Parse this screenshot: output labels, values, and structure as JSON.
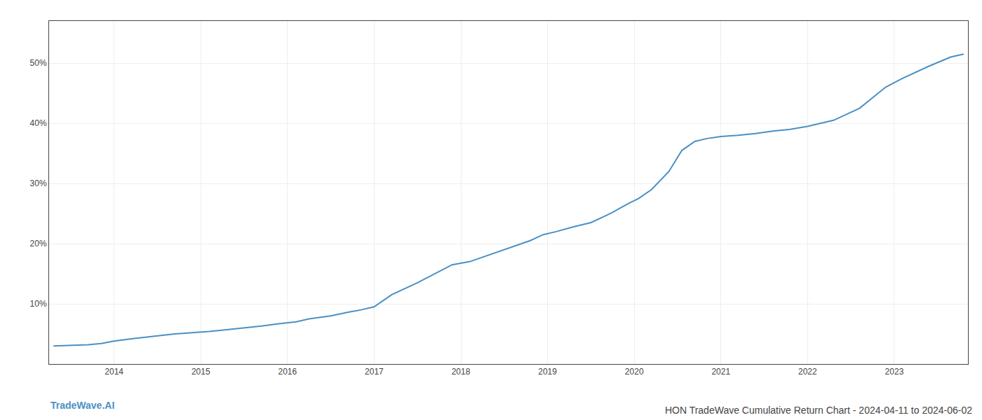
{
  "chart_data": {
    "type": "line",
    "title": "HON TradeWave Cumulative Return Chart - 2024-04-11 to 2024-06-02",
    "annotations": [
      "TradeWave.AI"
    ],
    "x": [
      2013.3,
      2013.5,
      2013.7,
      2013.85,
      2014.0,
      2014.2,
      2014.5,
      2014.7,
      2014.9,
      2015.1,
      2015.3,
      2015.5,
      2015.7,
      2015.9,
      2016.1,
      2016.25,
      2016.5,
      2016.7,
      2016.85,
      2017.0,
      2017.2,
      2017.5,
      2017.7,
      2017.9,
      2018.1,
      2018.3,
      2018.6,
      2018.8,
      2018.95,
      2019.1,
      2019.3,
      2019.5,
      2019.65,
      2019.75,
      2019.85,
      2019.95,
      2020.05,
      2020.2,
      2020.4,
      2020.55,
      2020.7,
      2020.85,
      2021.0,
      2021.2,
      2021.4,
      2021.6,
      2021.8,
      2022.0,
      2022.3,
      2022.6,
      2022.9,
      2023.1,
      2023.4,
      2023.65,
      2023.8
    ],
    "values": [
      3.0,
      3.1,
      3.2,
      3.4,
      3.8,
      4.2,
      4.7,
      5.0,
      5.2,
      5.4,
      5.7,
      6.0,
      6.3,
      6.7,
      7.0,
      7.5,
      8.0,
      8.6,
      9.0,
      9.5,
      11.5,
      13.5,
      15.0,
      16.5,
      17.0,
      18.0,
      19.5,
      20.5,
      21.5,
      22.0,
      22.8,
      23.5,
      24.5,
      25.2,
      26.0,
      26.8,
      27.5,
      29.0,
      32.0,
      35.5,
      37.0,
      37.5,
      37.8,
      38.0,
      38.3,
      38.7,
      39.0,
      39.5,
      40.5,
      42.5,
      46.0,
      47.5,
      49.5,
      51.0,
      51.5
    ],
    "color": "#4a90c4",
    "xlim": [
      2013.25,
      2023.85
    ],
    "xticks": [
      2014,
      2015,
      2016,
      2017,
      2018,
      2019,
      2020,
      2021,
      2022,
      2023
    ],
    "ylim": [
      0,
      57
    ],
    "yticks": [
      {
        "value": 10,
        "label": "10%"
      },
      {
        "value": 20,
        "label": "20%"
      },
      {
        "value": 30,
        "label": "30%"
      },
      {
        "value": 40,
        "label": "40%"
      },
      {
        "value": 50,
        "label": "50%"
      }
    ],
    "grid": true
  }
}
